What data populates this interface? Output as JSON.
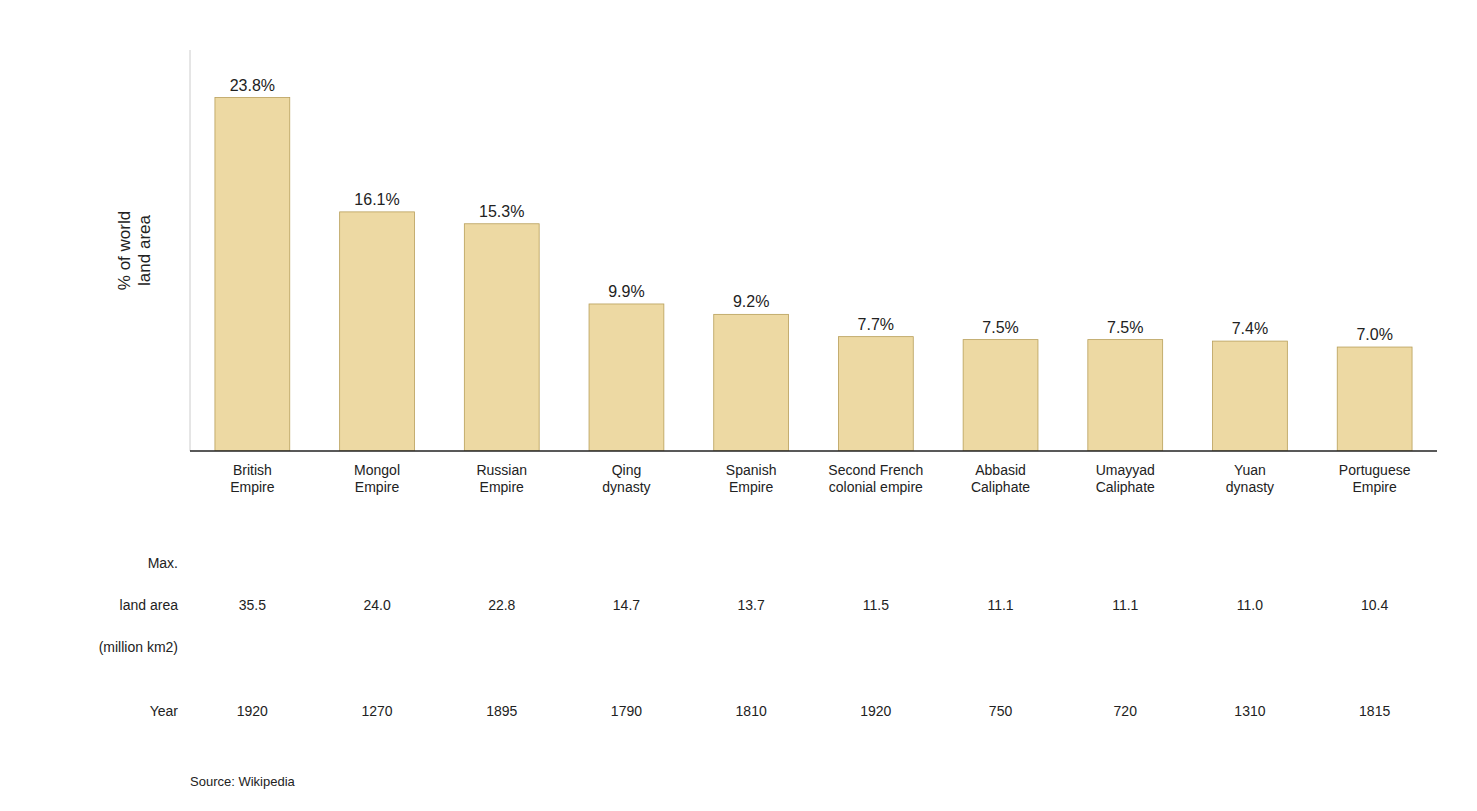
{
  "chart_data": {
    "type": "bar",
    "categories": [
      "British\nEmpire",
      "Mongol\nEmpire",
      "Russian\nEmpire",
      "Qing\ndynasty",
      "Spanish\nEmpire",
      "Second French\ncolonial empire",
      "Abbasid\nCaliphate",
      "Umayyad\nCaliphate",
      "Yuan\ndynasty",
      "Portuguese\nEmpire"
    ],
    "values": [
      23.8,
      16.1,
      15.3,
      9.9,
      9.2,
      7.7,
      7.5,
      7.5,
      7.4,
      7.0
    ],
    "value_labels": [
      "23.8%",
      "16.1%",
      "15.3%",
      "9.9%",
      "9.2%",
      "7.7%",
      "7.5%",
      "7.5%",
      "7.4%",
      "7.0%"
    ],
    "data_labels": true,
    "color": "#EDD9A3",
    "ylabel": "% of world\nland area",
    "ylim": [
      0,
      27
    ],
    "yticks": [],
    "tick_labels": "x",
    "grid": false,
    "land_area_label": "Max.\nland area\n(million km2)",
    "land_area": [
      "35.5",
      "24.0",
      "22.8",
      "14.7",
      "13.7",
      "11.5",
      "11.1",
      "11.1",
      "11.0",
      "10.4"
    ],
    "year_label": "Year",
    "years": [
      "1920",
      "1270",
      "1895",
      "1790",
      "1810",
      "1920",
      "750",
      "720",
      "1310",
      "1815"
    ],
    "source": "Source: Wikipedia"
  }
}
